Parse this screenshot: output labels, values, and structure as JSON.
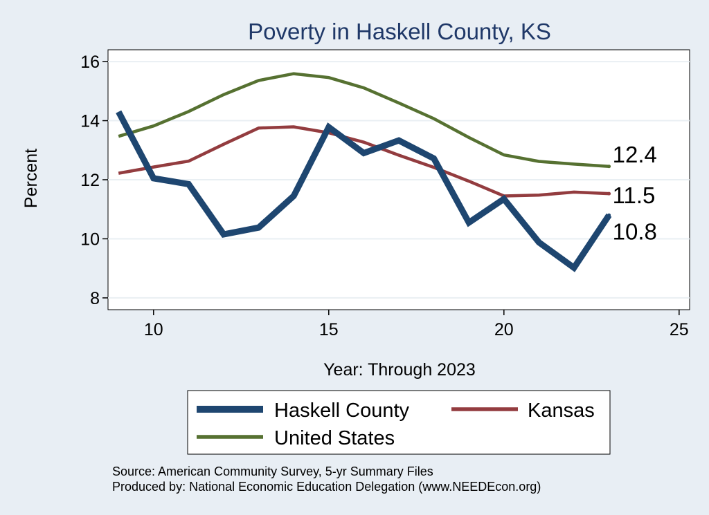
{
  "chart_data": {
    "type": "line",
    "title": "Poverty in Haskell County, KS",
    "xlabel": "Year: Through 2023",
    "ylabel": "Percent",
    "xlim": [
      8.7,
      25.3
    ],
    "ylim": [
      7.6,
      16.4
    ],
    "xticks": [
      10,
      15,
      20,
      25
    ],
    "yticks": [
      8,
      10,
      12,
      14,
      16
    ],
    "grid": true,
    "series": [
      {
        "name": "Haskell County",
        "color": "#1e4670",
        "x": [
          9,
          10,
          11,
          12,
          13,
          14,
          15,
          16,
          17,
          18,
          19,
          20,
          21,
          22,
          23
        ],
        "values": [
          14.3,
          12.05,
          11.85,
          10.15,
          10.38,
          11.45,
          13.78,
          12.9,
          13.33,
          12.72,
          10.55,
          11.35,
          9.88,
          9.02,
          10.8
        ],
        "end_label": "10.8"
      },
      {
        "name": "Kansas",
        "color": "#933c3f",
        "x": [
          9,
          10,
          11,
          12,
          13,
          14,
          15,
          16,
          17,
          18,
          19,
          20,
          21,
          22,
          23
        ],
        "values": [
          12.22,
          12.43,
          12.63,
          13.2,
          13.75,
          13.79,
          13.59,
          13.27,
          12.83,
          12.42,
          11.95,
          11.45,
          11.48,
          11.58,
          11.53
        ],
        "end_label": "11.5"
      },
      {
        "name": "United States",
        "color": "#567131",
        "x": [
          9,
          10,
          11,
          12,
          13,
          14,
          15,
          16,
          17,
          18,
          19,
          20,
          21,
          22,
          23
        ],
        "values": [
          13.47,
          13.82,
          14.31,
          14.88,
          15.36,
          15.59,
          15.46,
          15.11,
          14.6,
          14.07,
          13.43,
          12.84,
          12.62,
          12.53,
          12.45
        ],
        "end_label": "12.4"
      }
    ],
    "legend_position": "bottom"
  },
  "footer": {
    "source": "Source: American Community Survey, 5-yr Summary Files",
    "produced_by": "Produced by: National Economic Education Delegation (www.NEEDEcon.org)"
  }
}
